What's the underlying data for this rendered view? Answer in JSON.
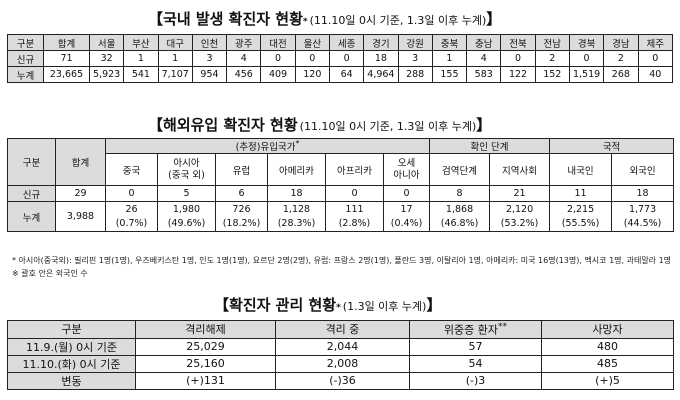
{
  "domestic": {
    "title": "국내 발생 확진자 현황",
    "sup": "*",
    "subtitle": "(11.10일 0시 기준, 1.3일 이후 누계)",
    "headers": [
      "구분",
      "합계",
      "서울",
      "부산",
      "대구",
      "인천",
      "광주",
      "대전",
      "울산",
      "세종",
      "경기",
      "강원",
      "충북",
      "충남",
      "전북",
      "전남",
      "경북",
      "경남",
      "제주"
    ],
    "rows": [
      {
        "label": "신규",
        "values": [
          "71",
          "32",
          "1",
          "1",
          "3",
          "4",
          "0",
          "0",
          "0",
          "18",
          "3",
          "1",
          "4",
          "0",
          "2",
          "0",
          "2",
          "0"
        ]
      },
      {
        "label": "누계",
        "values": [
          "23,665",
          "5,923",
          "541",
          "7,107",
          "954",
          "456",
          "409",
          "120",
          "64",
          "4,964",
          "288",
          "155",
          "583",
          "122",
          "152",
          "1,519",
          "268",
          "40"
        ]
      }
    ]
  },
  "overseas": {
    "title": "해외유입 확진자 현황",
    "subtitle": "(11.10일 0시 기준, 1.3일 이후 누계)",
    "col_division": "구분",
    "col_total": "합계",
    "group_country": "(추정)유입국가",
    "group_country_sup": "*",
    "group_stage": "확인 단계",
    "group_nation": "국적",
    "sub_headers": [
      "중국",
      "아시아\n(중국 외)",
      "유럽",
      "아메리카",
      "아프리카",
      "오세\n아니아",
      "검역단계",
      "지역사회",
      "내국인",
      "외국인"
    ],
    "new": {
      "label": "신규",
      "total": "29",
      "values": [
        "0",
        "5",
        "6",
        "18",
        "0",
        "0",
        "8",
        "21",
        "11",
        "18"
      ]
    },
    "cumulative": {
      "label": "누계",
      "total": "3,988",
      "values": [
        "26",
        "1,980",
        "726",
        "1,128",
        "111",
        "17",
        "1,868",
        "2,120",
        "2,215",
        "1,773"
      ],
      "pcts": [
        "(0.7%)",
        "(49.6%)",
        "(18.2%)",
        "(28.3%)",
        "(2.8%)",
        "(0.4%)",
        "(46.8%)",
        "(53.2%)",
        "(55.5%)",
        "(44.5%)"
      ]
    },
    "note": "* 아시아(중국외): 필리핀 1명(1명), 우즈베키스탄 1명, 인도 1명(1명), 요르단 2명(2명), 유럽: 프랑스 2명(1명), 폴란드 3명, 이탈리아 1명, 아메리카: 미국 16명(13명), 멕시코 1명, 과테말라 1명 ※ 괄호 안은 외국인 수"
  },
  "management": {
    "title": "확진자 관리 현황",
    "sup": "*",
    "subtitle": "(1.3일 이후 누계)",
    "headers": [
      "구분",
      "격리해제",
      "격리 중",
      "위중증 환자",
      "사망자"
    ],
    "header_sup": "**",
    "rows": [
      {
        "label": "11.9.(월) 0시 기준",
        "values": [
          "25,029",
          "2,044",
          "57",
          "480"
        ]
      },
      {
        "label": "11.10.(화) 0시 기준",
        "values": [
          "25,160",
          "2,008",
          "54",
          "485"
        ]
      },
      {
        "label": "변동",
        "values": [
          "(+)131",
          "(-)36",
          "(-)3",
          "(+)5"
        ]
      }
    ]
  }
}
